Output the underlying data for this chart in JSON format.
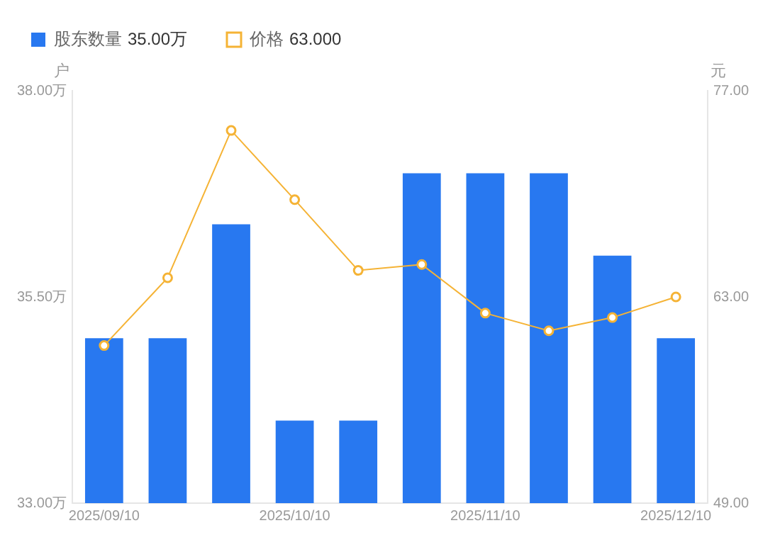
{
  "chart_data": {
    "type": "bar",
    "ylabel": "户",
    "y2label": "元",
    "categories": [
      "2025/09/10",
      null,
      null,
      "2025/10/10",
      null,
      null,
      "2025/11/10",
      null,
      null,
      "2025/12/10"
    ],
    "series": [
      {
        "name": "股东数量",
        "color": "#2878f0",
        "values": [
          35.0,
          35.0,
          36.38,
          34.0,
          34.0,
          37.0,
          37.0,
          37.0,
          36.0,
          35.0
        ]
      },
      {
        "name": "价格",
        "type": "line",
        "axis": "y2",
        "color": "#f5b335",
        "marker": "circle",
        "values": [
          59.7,
          64.3,
          74.3,
          69.6,
          64.8,
          65.2,
          61.9,
          60.7,
          61.6,
          63.0
        ]
      }
    ],
    "ylim": [
      33,
      38
    ],
    "yticks": [
      {
        "value": 33,
        "label": "33.00万"
      },
      {
        "value": 35.5,
        "label": "35.50万"
      },
      {
        "value": 38,
        "label": "38.00万"
      }
    ],
    "y2lim": [
      49,
      77
    ],
    "y2ticks": [
      {
        "value": 49,
        "label": "49.00"
      },
      {
        "value": 63,
        "label": "63.00"
      },
      {
        "value": 77,
        "label": "77.00"
      }
    ],
    "grid": false,
    "legend": "top left",
    "annotations": [
      "35.00万",
      "63.000"
    ]
  }
}
